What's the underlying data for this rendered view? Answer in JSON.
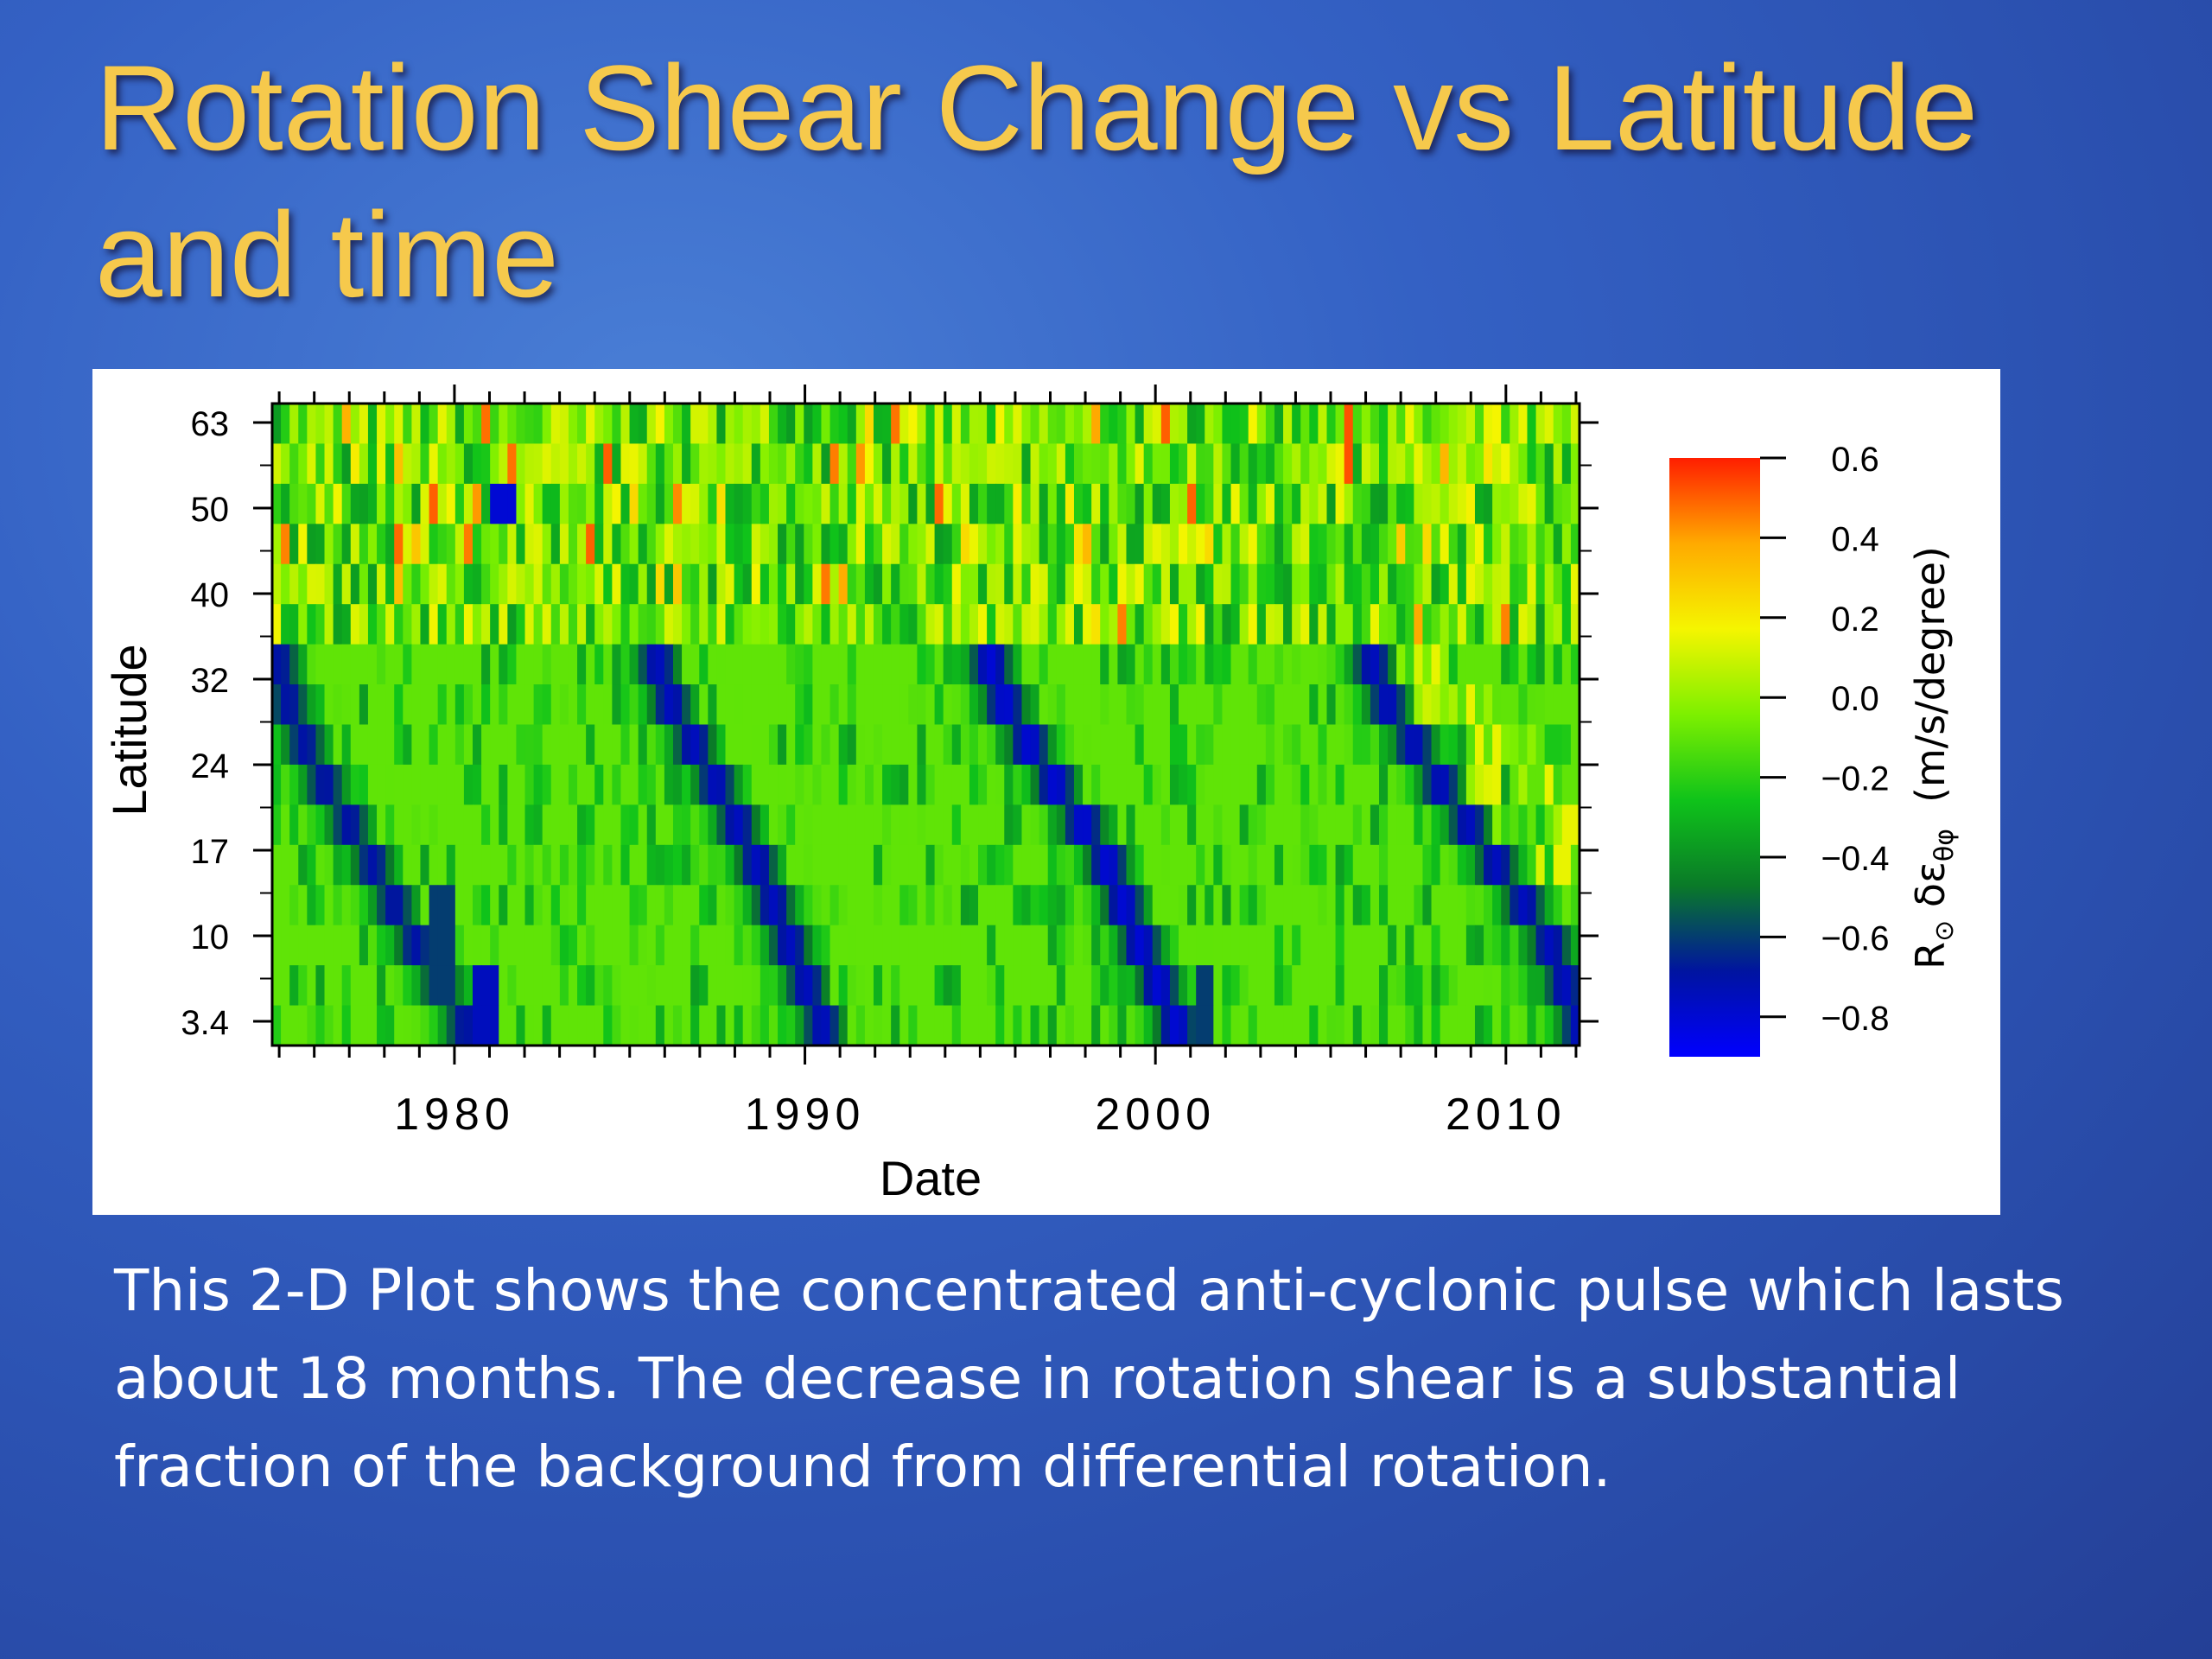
{
  "slide": {
    "title_line1": "Rotation Shear Change vs Latitude",
    "title_line2": "and time",
    "caption": "This 2-D Plot shows the concentrated anti-cyclonic pulse which lasts about 18 months.  The decrease in rotation shear is a substantial fraction of the background from differential rotation.",
    "title_color": "#f6c94c",
    "background_color": "#3461c4"
  },
  "chart_data": {
    "type": "heatmap",
    "xlabel": "Date",
    "ylabel": "Latitude",
    "x_ticks": [
      "1980",
      "1990",
      "2000",
      "2010"
    ],
    "x_tick_values": [
      1980,
      1990,
      2000,
      2010
    ],
    "xlim": [
      1974.8,
      2012.1
    ],
    "y_ticks": [
      "63",
      "50",
      "40",
      "32",
      "24",
      "17",
      "10",
      "3.4"
    ],
    "colorbar": {
      "label_symbol": "R",
      "label_sub": "⊙",
      "label_main": " δε",
      "label_sub2": "θφ",
      "label_units": "(m/s/degree)",
      "ticks": [
        "0.6",
        "0.4",
        "0.2",
        "0.0",
        "−0.2",
        "−0.4",
        "−0.6",
        "−0.8"
      ],
      "tick_values": [
        0.6,
        0.4,
        0.2,
        0.0,
        -0.2,
        -0.4,
        -0.6,
        -0.8
      ],
      "range": [
        -0.9,
        0.6
      ],
      "colors": [
        "#0000ff",
        "#0014a0",
        "#0a7a28",
        "#0fc31a",
        "#7df000",
        "#f5f500",
        "#ffaa00",
        "#ff1e00"
      ]
    },
    "background_value": -0.1,
    "torsional_bands": [
      {
        "peak": -0.7,
        "points": [
          [
            1975.0,
            32
          ],
          [
            1976.0,
            24
          ],
          [
            1977.5,
            17
          ],
          [
            1978.8,
            10
          ],
          [
            1980.3,
            3.4
          ]
        ]
      },
      {
        "peak": -0.75,
        "points": [
          [
            1985.8,
            32
          ],
          [
            1987.2,
            24
          ],
          [
            1988.5,
            17
          ],
          [
            1989.5,
            10
          ],
          [
            1990.5,
            3.4
          ]
        ]
      },
      {
        "peak": -0.8,
        "points": [
          [
            1995.3,
            32
          ],
          [
            1996.8,
            24
          ],
          [
            1998.5,
            17
          ],
          [
            1999.5,
            10
          ],
          [
            2000.6,
            3.4
          ]
        ]
      },
      {
        "peak": -0.75,
        "points": [
          [
            2006.2,
            32
          ],
          [
            2007.8,
            24
          ],
          [
            2009.5,
            17
          ],
          [
            2011.2,
            10
          ],
          [
            2012.1,
            3.4
          ]
        ]
      }
    ],
    "isolated_minima": [
      {
        "x": 1981.4,
        "y": 50,
        "value": -0.8
      },
      {
        "x": 1980.8,
        "y": 3.4,
        "value": -0.75
      },
      {
        "x": 1979.6,
        "y": 10,
        "value": -0.6
      },
      {
        "x": 2001.4,
        "y": 3.4,
        "value": -0.6
      }
    ],
    "grid": false,
    "colorbar_position": "right"
  }
}
